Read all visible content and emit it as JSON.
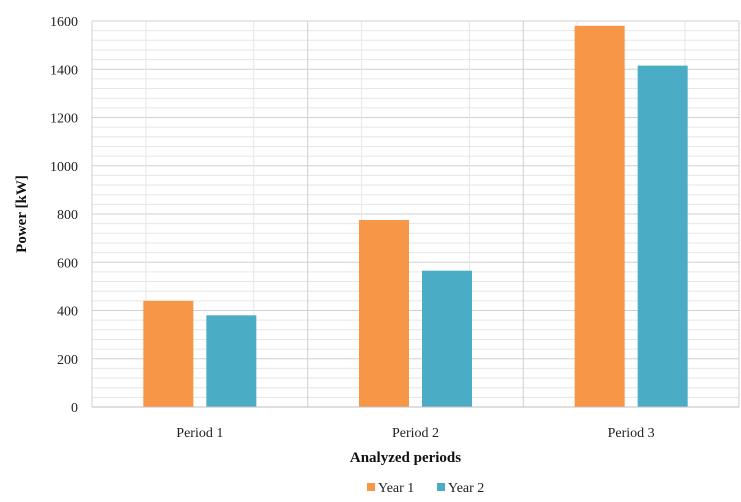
{
  "chart_data": {
    "type": "bar",
    "categories": [
      "Period 1",
      "Period 2",
      "Period 3"
    ],
    "series": [
      {
        "name": "Year 1",
        "values": [
          440,
          775,
          1580
        ],
        "color": "#F79646"
      },
      {
        "name": "Year 2",
        "values": [
          380,
          565,
          1415
        ],
        "color": "#4BACC6"
      }
    ],
    "xlabel": "Analyzed periods",
    "ylabel": "Power [kW]",
    "ylim": [
      0,
      1600
    ],
    "yticks": [
      0,
      200,
      400,
      600,
      800,
      1000,
      1200,
      1400,
      1600
    ],
    "grid": "major and minor",
    "legend_position": "bottom"
  }
}
